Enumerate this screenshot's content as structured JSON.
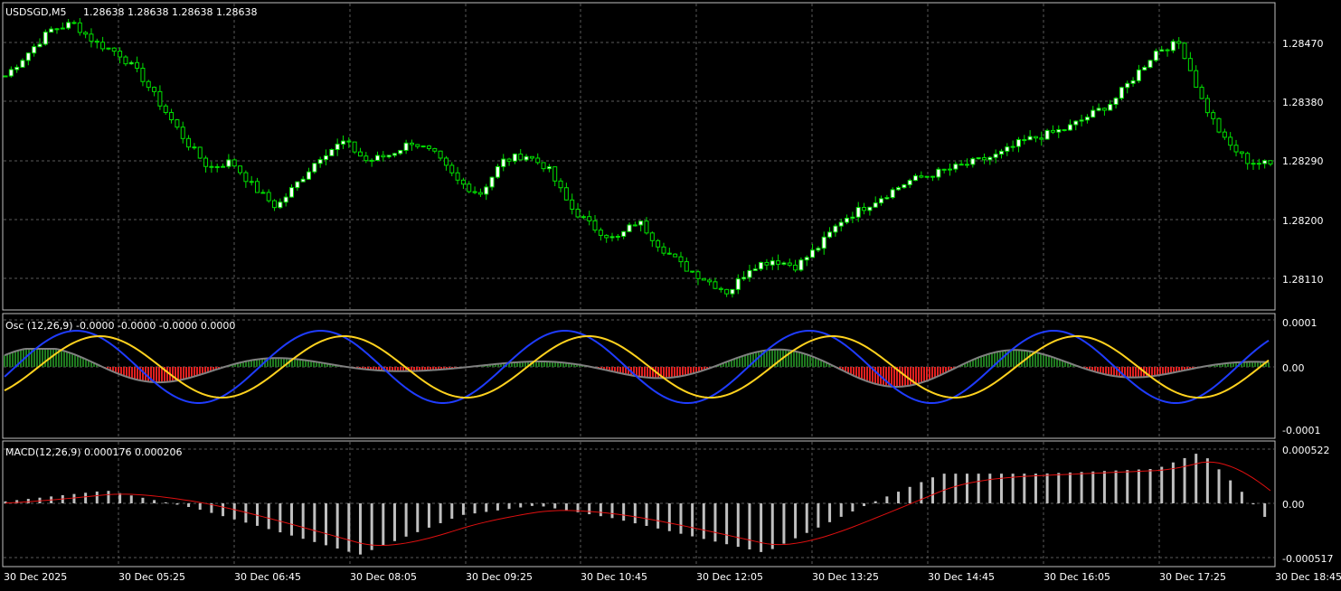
{
  "main_header": {
    "symbol": "USDSGD,M5",
    "ohlc": "1.28638 1.28638 1.28638 1.28638"
  },
  "osc_header": "Osc (12,26,9) -0.0000 -0.0000 -0.0000 0.0000",
  "macd_header": "MACD(12,26,9) 0.000176 0.000206",
  "colors": {
    "background": "#000000",
    "frame": "#c0c0c0",
    "grid": "#5a5a5a",
    "bull_candle": "#ffffff",
    "bear_candle": "#000000",
    "candle_outline": "#00e000",
    "osc_positive": "#1f7a1f",
    "osc_negative": "#e02020",
    "osc_gray_line": "#808080",
    "osc_blue_line": "#1f3cff",
    "osc_yellow_line": "#ffd21e",
    "macd_hist": "#c0c0c0",
    "macd_signal": "#e01010"
  },
  "chart_data": [
    {
      "type": "candlestick",
      "symbol": "USDSGD",
      "timeframe": "M5",
      "y_ticks": [
        "1.28470",
        "1.28380",
        "1.28290",
        "1.28200",
        "1.28110"
      ],
      "ylim": [
        1.28065,
        1.2853
      ],
      "approx_close_path": [
        1.2842,
        1.28455,
        1.2849,
        1.285,
        1.2847,
        1.28455,
        1.2842,
        1.2837,
        1.2832,
        1.2828,
        1.2829,
        1.2825,
        1.2822,
        1.2826,
        1.283,
        1.2832,
        1.2829,
        1.283,
        1.2832,
        1.283,
        1.2826,
        1.2824,
        1.2829,
        1.283,
        1.2828,
        1.2822,
        1.2819,
        1.2817,
        1.282,
        1.2816,
        1.2813,
        1.2811,
        1.2809,
        1.2813,
        1.2814,
        1.2813,
        1.2816,
        1.282,
        1.2822,
        1.2824,
        1.2826,
        1.2827,
        1.2828,
        1.2829,
        1.283,
        1.2832,
        1.2833,
        1.2834,
        1.2836,
        1.2838,
        1.2842,
        1.2846,
        1.2847,
        1.2838,
        1.2832,
        1.2829,
        1.28285
      ]
    },
    {
      "type": "oscillator",
      "name": "Osc (12,26,9)",
      "y_ticks": [
        "0.0001",
        "0.00",
        "-0.0001"
      ],
      "ylim": [
        -0.000115,
        0.000115
      ]
    },
    {
      "type": "macd",
      "name": "MACD(12,26,9)",
      "y_ticks": [
        "0.000522",
        "0.00",
        "-0.000517"
      ],
      "ylim": [
        -0.00058,
        0.00058
      ],
      "main": 0.000176,
      "signal": 0.000206
    }
  ],
  "time_axis": {
    "labels": [
      "30 Dec 2025",
      "30 Dec 05:25",
      "30 Dec 06:45",
      "30 Dec 08:05",
      "30 Dec 09:25",
      "30 Dec 10:45",
      "30 Dec 12:05",
      "30 Dec 13:25",
      "30 Dec 14:45",
      "30 Dec 16:05",
      "30 Dec 17:25",
      "30 Dec 18:45"
    ]
  }
}
